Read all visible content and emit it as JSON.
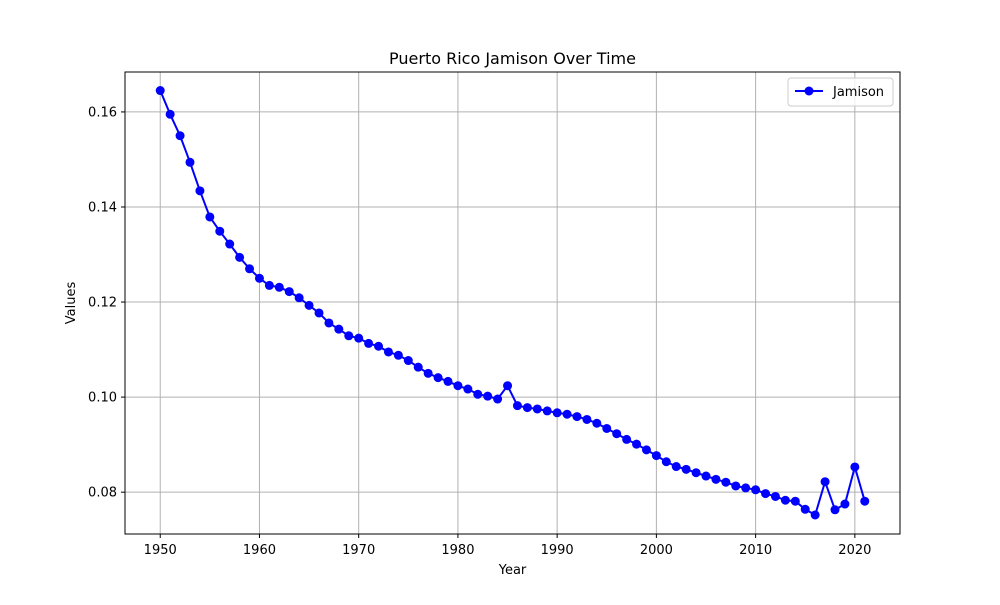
{
  "chart_data": {
    "type": "line",
    "title": "Puerto Rico Jamison Over Time",
    "xlabel": "Year",
    "ylabel": "Values",
    "xlim": [
      1946.45,
      2024.55
    ],
    "ylim": [
      0.0712,
      0.1684
    ],
    "x_ticks": [
      1950,
      1960,
      1970,
      1980,
      1990,
      2000,
      2010,
      2020
    ],
    "y_ticks": [
      0.08,
      0.1,
      0.12,
      0.14,
      0.16
    ],
    "x_tick_labels": [
      "1950",
      "1960",
      "1970",
      "1980",
      "1990",
      "2000",
      "2010",
      "2020"
    ],
    "y_tick_labels": [
      "0.08",
      "0.10",
      "0.12",
      "0.14",
      "0.16"
    ],
    "grid": true,
    "legend_position": "top-right",
    "series": [
      {
        "name": "Jamison",
        "color": "#0000ff",
        "marker": "circle",
        "x": [
          1950,
          1951,
          1952,
          1953,
          1954,
          1955,
          1956,
          1957,
          1958,
          1959,
          1960,
          1961,
          1962,
          1963,
          1964,
          1965,
          1966,
          1967,
          1968,
          1969,
          1970,
          1971,
          1972,
          1973,
          1974,
          1975,
          1976,
          1977,
          1978,
          1979,
          1980,
          1981,
          1982,
          1983,
          1984,
          1985,
          1986,
          1987,
          1988,
          1989,
          1990,
          1991,
          1992,
          1993,
          1994,
          1995,
          1996,
          1997,
          1998,
          1999,
          2000,
          2001,
          2002,
          2003,
          2004,
          2005,
          2006,
          2007,
          2008,
          2009,
          2010,
          2011,
          2012,
          2013,
          2014,
          2015,
          2016,
          2017,
          2018,
          2019,
          2020,
          2021
        ],
        "y": [
          0.1645,
          0.1595,
          0.155,
          0.1494,
          0.1434,
          0.1379,
          0.1349,
          0.1322,
          0.1294,
          0.127,
          0.125,
          0.1235,
          0.1231,
          0.1222,
          0.1209,
          0.1193,
          0.1177,
          0.1156,
          0.1143,
          0.1129,
          0.1124,
          0.1113,
          0.1107,
          0.1095,
          0.1088,
          0.1077,
          0.1063,
          0.105,
          0.1041,
          0.1033,
          0.1024,
          0.1017,
          0.1006,
          0.1002,
          0.0996,
          0.1024,
          0.0982,
          0.0978,
          0.0975,
          0.0971,
          0.0967,
          0.0964,
          0.0959,
          0.0953,
          0.0945,
          0.0934,
          0.0923,
          0.0911,
          0.0901,
          0.0889,
          0.0877,
          0.0864,
          0.0854,
          0.0848,
          0.0841,
          0.0834,
          0.0827,
          0.0821,
          0.0813,
          0.0809,
          0.0805,
          0.0797,
          0.0791,
          0.0783,
          0.0781,
          0.0764,
          0.0752,
          0.0822,
          0.0763,
          0.0775,
          0.0853,
          0.0781
        ]
      }
    ]
  }
}
